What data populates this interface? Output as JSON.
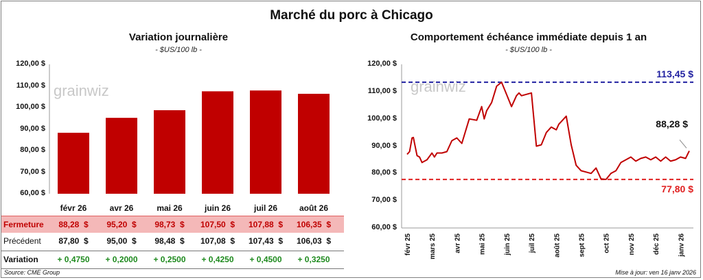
{
  "title": "Marché du porc à Chicago",
  "source": "Source: CME Group",
  "updated": "Mise à jour: ven 16 janv 2026",
  "logo_text": "grainwiz",
  "chart_data": [
    {
      "type": "bar",
      "title": "Variation journalière",
      "subtitle": "- $US/100 lb -",
      "categories": [
        "févr 26",
        "avr 26",
        "mai 26",
        "juin 26",
        "juil 26",
        "août 26"
      ],
      "values": [
        88.28,
        95.2,
        98.73,
        107.5,
        107.88,
        106.35
      ],
      "ylim": [
        60,
        120
      ],
      "yticks": [
        "60,00 $",
        "70,00 $",
        "80,00 $",
        "90,00 $",
        "100,00 $",
        "110,00 $",
        "120,00 $"
      ],
      "bar_color": "#c00000",
      "grid": false,
      "table": {
        "rows": [
          {
            "label": "Fermeture",
            "cells": [
              "88,28  $",
              "95,20  $",
              "98,73  $",
              "107,50  $",
              "107,88  $",
              "106,35  $"
            ],
            "bg": "#f4b8b8",
            "color": "#c00000"
          },
          {
            "label": "Précédent",
            "cells": [
              "87,80  $",
              "95,00  $",
              "98,48  $",
              "107,08  $",
              "107,43  $",
              "106,03  $"
            ],
            "bg": "#ffffff",
            "color": "#111111"
          },
          {
            "label": "Variation",
            "cells": [
              "+ 0,4750",
              "+ 0,2000",
              "+ 0,2500",
              "+ 0,4250",
              "+ 0,4500",
              "+ 0,3250"
            ],
            "bg": "#ffffff",
            "color": "#1e8a1e"
          }
        ]
      }
    },
    {
      "type": "line",
      "title": "Comportement échéance immédiate depuis 1 an",
      "subtitle": "- $US/100 lb -",
      "ylim": [
        60,
        120
      ],
      "yticks": [
        "60,00 $",
        "70,00 $",
        "80,00 $",
        "90,00 $",
        "100,00 $",
        "110,00 $",
        "120,00 $"
      ],
      "xticks": [
        "févr 25",
        "mars 25",
        "avr 25",
        "mai 25",
        "juin 25",
        "juil 25",
        "août 25",
        "sept 25",
        "oct 25",
        "nov 25",
        "déc 25",
        "janv 26"
      ],
      "line_color": "#c00000",
      "grid": false,
      "series": [
        {
          "x": [
            0,
            0.1,
            0.2,
            0.25,
            0.4,
            0.5,
            0.6,
            0.8,
            1.0,
            1.1,
            1.2,
            1.4,
            1.6,
            1.8,
            2.0,
            2.2,
            2.5,
            2.8,
            3.0,
            3.1,
            3.2,
            3.4,
            3.6,
            3.8,
            4.0,
            4.2,
            4.4,
            4.5,
            4.6,
            4.8,
            5.0,
            5.2,
            5.4,
            5.6,
            5.8,
            6.0,
            6.1,
            6.2,
            6.4,
            6.6,
            6.8,
            7.0,
            7.2,
            7.4,
            7.6,
            7.8,
            8.0,
            8.2,
            8.4,
            8.6,
            8.8,
            9.0,
            9.2,
            9.4,
            9.6,
            9.8,
            10.0,
            10.2,
            10.4,
            10.6,
            10.8,
            11.0,
            11.2,
            11.35
          ],
          "y": [
            87.0,
            88.0,
            93.0,
            93.2,
            86.5,
            86.0,
            84.0,
            85.0,
            87.5,
            86.0,
            87.5,
            87.5,
            88.0,
            92.0,
            93.0,
            91.0,
            100.0,
            99.5,
            104.5,
            100.0,
            103.0,
            106.0,
            112.0,
            113.45,
            109.0,
            104.5,
            108.5,
            109.5,
            108.5,
            109.0,
            109.5,
            90.0,
            90.5,
            95.0,
            97.0,
            96.0,
            98.0,
            99.0,
            101.0,
            90.5,
            83.0,
            81.0,
            80.5,
            80.0,
            82.0,
            78.0,
            77.8,
            80.0,
            81.0,
            84.0,
            85.0,
            86.0,
            84.5,
            85.5,
            86.0,
            85.0,
            86.0,
            84.5,
            86.0,
            84.5,
            85.0,
            86.0,
            85.5,
            88.28
          ]
        }
      ],
      "hlines": [
        {
          "value": 113.45,
          "label": "113,45 $",
          "color": "#1f1fa0"
        },
        {
          "value": 77.8,
          "label": "77,80 $",
          "color": "#e02020"
        }
      ],
      "last_label": "88,28 $"
    }
  ]
}
